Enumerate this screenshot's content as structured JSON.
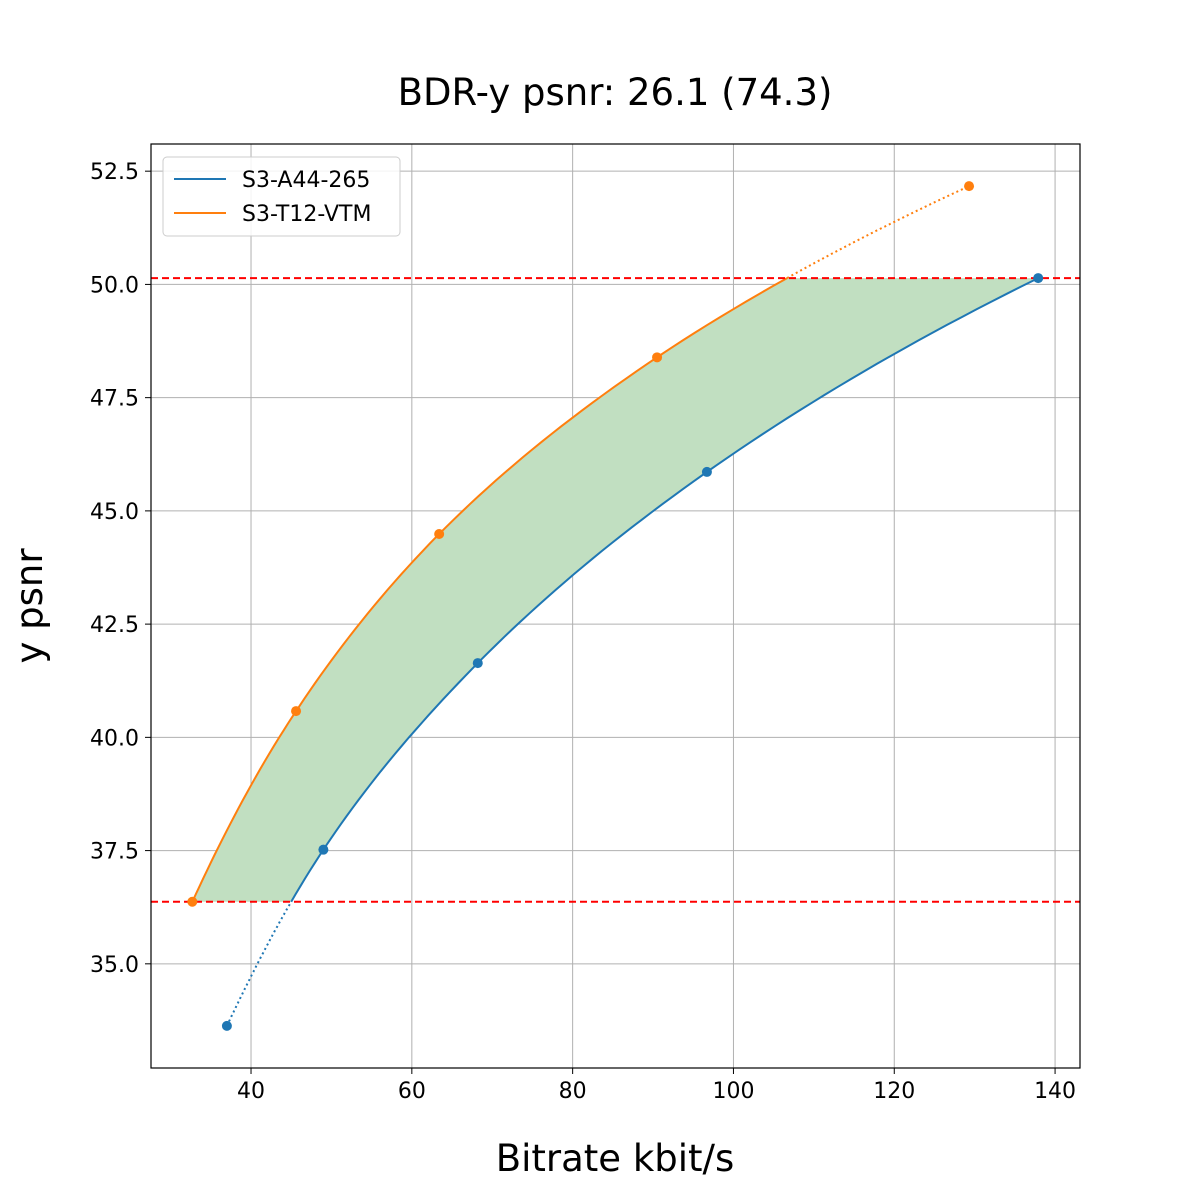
{
  "chart_data": {
    "type": "line",
    "title": "BDR-y psnr: 26.1 (74.3)",
    "xlabel": "Bitrate kbit/s",
    "ylabel": "y psnr",
    "xlim": [
      27.56,
      143.1
    ],
    "ylim": [
      32.7,
      53.1
    ],
    "xticks": [
      40,
      60,
      80,
      100,
      120,
      140
    ],
    "xtick_labels": [
      "40",
      "60",
      "80",
      "100",
      "120",
      "140"
    ],
    "yticks": [
      35.0,
      37.5,
      40.0,
      42.5,
      45.0,
      47.5,
      50.0,
      52.5
    ],
    "ytick_labels": [
      "35.0",
      "37.5",
      "40.0",
      "42.5",
      "45.0",
      "47.5",
      "50.0",
      "52.5"
    ],
    "grid": true,
    "legend_position": "top-left",
    "series": [
      {
        "name": "S3-A44-265",
        "color": "#1f77b4",
        "x": [
          37.0,
          49.0,
          68.2,
          96.7,
          137.9
        ],
        "y": [
          33.63,
          37.52,
          41.64,
          45.86,
          50.14
        ]
      },
      {
        "name": "S3-T12-VTM",
        "color": "#ff7f0e",
        "x": [
          32.7,
          45.6,
          63.4,
          90.5,
          129.3
        ],
        "y": [
          36.37,
          40.58,
          44.49,
          48.39,
          52.17
        ]
      }
    ],
    "reference_lines": {
      "color": "#ff0000",
      "style": "dashed",
      "y": [
        50.14,
        36.37
      ]
    },
    "fill_between": {
      "color": "#c1dfc1",
      "y_range": [
        36.37,
        50.14
      ]
    }
  }
}
